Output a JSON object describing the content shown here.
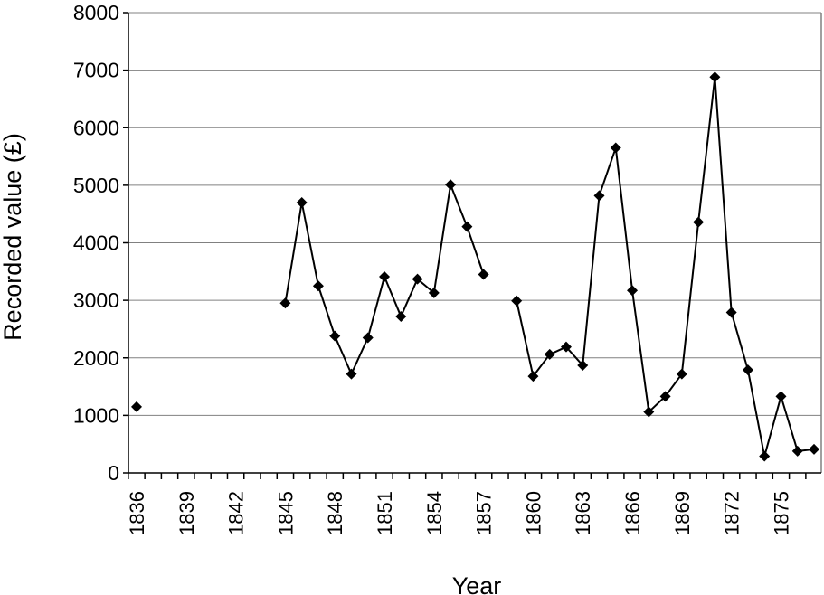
{
  "chart_data": {
    "type": "line",
    "xlabel": "Year",
    "ylabel": "Recorded value (£)",
    "ylim": [
      0,
      8000
    ],
    "yticks": [
      0,
      1000,
      2000,
      3000,
      4000,
      5000,
      6000,
      7000,
      8000
    ],
    "xlim": [
      1836,
      1877
    ],
    "xticks": [
      1836,
      1839,
      1842,
      1845,
      1848,
      1851,
      1854,
      1857,
      1860,
      1863,
      1866,
      1869,
      1872,
      1875
    ],
    "grid": "horizontal",
    "legend": "none",
    "series": [
      {
        "color": "#000000",
        "marker": "diamond",
        "x": [
          1836,
          1837,
          1838,
          1839,
          1840,
          1841,
          1842,
          1843,
          1844,
          1845,
          1846,
          1847,
          1848,
          1849,
          1850,
          1851,
          1852,
          1853,
          1854,
          1855,
          1856,
          1857,
          1858,
          1859,
          1860,
          1861,
          1862,
          1863,
          1864,
          1865,
          1866,
          1867,
          1868,
          1869,
          1870,
          1871,
          1872,
          1873,
          1874,
          1875,
          1876,
          1877
        ],
        "y": [
          1150,
          null,
          null,
          null,
          null,
          null,
          null,
          null,
          null,
          2950,
          4700,
          3250,
          2380,
          1720,
          2350,
          3410,
          2720,
          3370,
          3130,
          5010,
          4280,
          3450,
          null,
          2990,
          1680,
          2060,
          2190,
          1870,
          4820,
          5650,
          3170,
          1060,
          1330,
          1720,
          4360,
          6880,
          2790,
          1790,
          290,
          1330,
          380,
          410
        ]
      }
    ]
  }
}
